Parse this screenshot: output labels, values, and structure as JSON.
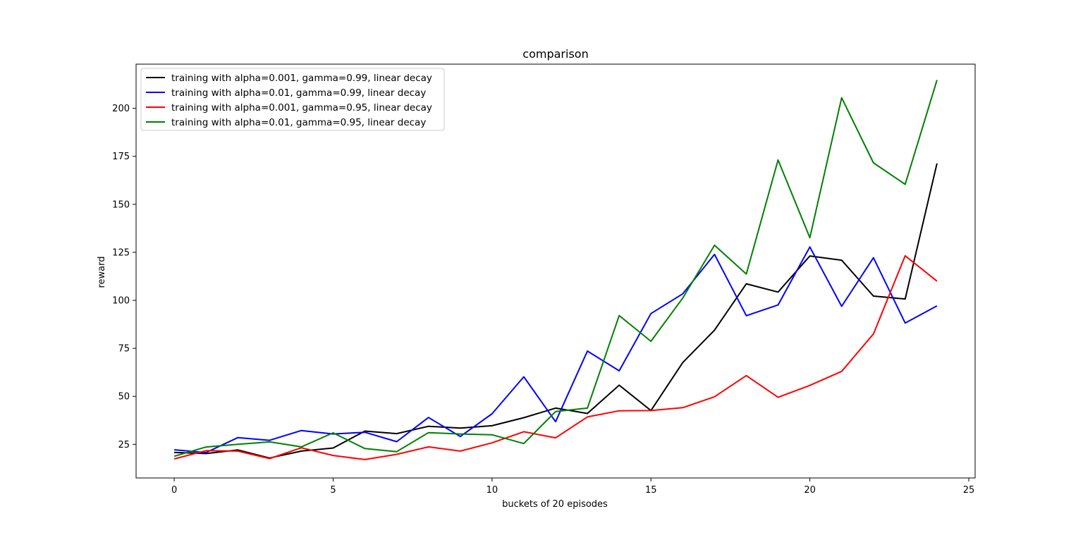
{
  "chart_data": {
    "type": "line",
    "title": "comparison",
    "xlabel": "buckets of 20 episodes",
    "ylabel": "reward",
    "xlim": [
      -1.2,
      25.2
    ],
    "ylim": [
      7.5,
      223
    ],
    "xticks": [
      0,
      5,
      10,
      15,
      20,
      25
    ],
    "yticks": [
      25,
      50,
      75,
      100,
      125,
      150,
      175,
      200
    ],
    "grid": false,
    "legend_position": "top-left",
    "x": [
      0,
      1,
      2,
      3,
      4,
      5,
      6,
      7,
      8,
      9,
      10,
      11,
      12,
      13,
      14,
      15,
      16,
      17,
      18,
      19,
      20,
      21,
      22,
      23,
      24
    ],
    "series": [
      {
        "name": "training with alpha=0.001, gamma=0.99, linear decay",
        "color": "#000000",
        "values": [
          20.8,
          20.2,
          22.1,
          17.9,
          21.5,
          23.1,
          31.9,
          30.6,
          34.4,
          33.5,
          34.7,
          38.9,
          43.9,
          41.1,
          55.8,
          42.6,
          67.6,
          84.5,
          108.6,
          104.3,
          123.1,
          120.9,
          102.2,
          100.7,
          171.3
        ]
      },
      {
        "name": "training with alpha=0.01, gamma=0.99, linear decay",
        "color": "#0000ff",
        "values": [
          22.2,
          20.7,
          28.5,
          27.1,
          32.2,
          30.4,
          31.3,
          26.4,
          39.0,
          29.1,
          40.9,
          60.2,
          36.8,
          73.6,
          63.3,
          93.1,
          103.4,
          123.9,
          92.0,
          97.6,
          127.8,
          96.9,
          122.2,
          88.2,
          97.1
        ]
      },
      {
        "name": "training with alpha=0.001, gamma=0.95, linear decay",
        "color": "#ff0000",
        "values": [
          17.4,
          21.7,
          21.5,
          17.6,
          23.2,
          19.2,
          17.1,
          19.8,
          23.7,
          21.5,
          25.8,
          31.6,
          28.4,
          39.3,
          42.5,
          42.6,
          44.1,
          49.8,
          60.8,
          49.5,
          55.7,
          63.0,
          82.5,
          123.2,
          110.0
        ]
      },
      {
        "name": "training with alpha=0.01, gamma=0.95, linear decay",
        "color": "#008000",
        "values": [
          18.8,
          23.6,
          25.0,
          26.3,
          23.7,
          31.0,
          22.8,
          21.2,
          31.1,
          30.4,
          30.0,
          25.4,
          42.1,
          43.9,
          92.1,
          78.7,
          101.2,
          128.7,
          113.7,
          173.1,
          132.6,
          205.5,
          171.6,
          160.4,
          214.7
        ]
      }
    ]
  }
}
